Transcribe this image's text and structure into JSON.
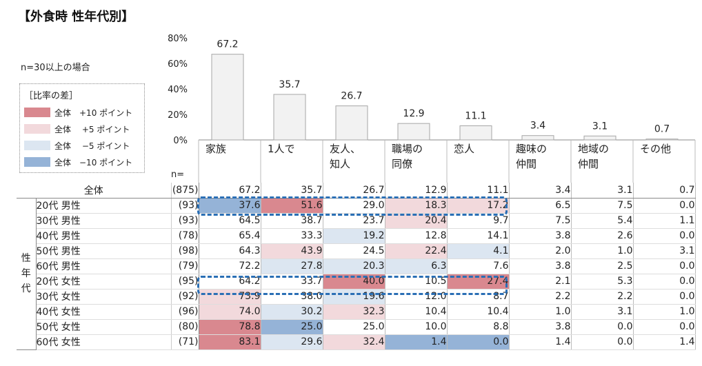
{
  "title": "【外食時 性年代別】",
  "note": "n=30以上の場合",
  "legend": {
    "title": "［比率の差］",
    "items": [
      {
        "label": "全体　+10 ポイント",
        "color": "#d9888f"
      },
      {
        "label": "全体　 +5 ポイント",
        "color": "#f2d9dc"
      },
      {
        "label": "全体　 −5 ポイント",
        "color": "#dce6f1"
      },
      {
        "label": "全体　−10 ポイント",
        "color": "#95b3d7"
      }
    ]
  },
  "n_header": "n=",
  "chart_data": {
    "type": "bar",
    "categories": [
      "家族",
      "1人で",
      "友人、\n知人",
      "職場の\n同僚",
      "恋人",
      "趣味の\n仲間",
      "地域の\n仲間",
      "その他"
    ],
    "values": [
      67.2,
      35.7,
      26.7,
      12.9,
      11.1,
      3.4,
      3.1,
      0.7
    ],
    "ylim": [
      0,
      80
    ],
    "yticks": [
      "0%",
      "20%",
      "40%",
      "60%",
      "80%"
    ],
    "bar_color": "#f2f2f2",
    "bar_edge": "#a6a6a6"
  },
  "table": {
    "total_label": "全体",
    "total_n": "(875)",
    "total_values": [
      "67.2",
      "35.7",
      "26.7",
      "12.9",
      "11.1",
      "3.4",
      "3.1",
      "0.7"
    ],
    "group_label": "性\n年\n代",
    "rows": [
      {
        "label": "20代 男性",
        "n": "(93)",
        "values": [
          "37.6",
          "51.6",
          "29.0",
          "18.3",
          "17.2",
          "6.5",
          "7.5",
          "0.0"
        ],
        "colors": [
          "#95b3d7",
          "#d9888f",
          "",
          "#f2d9dc",
          "#f2d9dc",
          "",
          "",
          ""
        ]
      },
      {
        "label": "30代 男性",
        "n": "(93)",
        "values": [
          "64.5",
          "38.7",
          "23.7",
          "20.4",
          "9.7",
          "7.5",
          "5.4",
          "1.1"
        ],
        "colors": [
          "",
          "",
          "",
          "#f2d9dc",
          "",
          "",
          "",
          ""
        ]
      },
      {
        "label": "40代 男性",
        "n": "(78)",
        "values": [
          "65.4",
          "33.3",
          "19.2",
          "12.8",
          "14.1",
          "3.8",
          "2.6",
          "0.0"
        ],
        "colors": [
          "",
          "",
          "#dce6f1",
          "",
          "",
          "",
          "",
          ""
        ]
      },
      {
        "label": "50代 男性",
        "n": "(98)",
        "values": [
          "64.3",
          "43.9",
          "24.5",
          "22.4",
          "4.1",
          "2.0",
          "1.0",
          "3.1"
        ],
        "colors": [
          "",
          "#f2d9dc",
          "",
          "#f2d9dc",
          "#dce6f1",
          "",
          "",
          ""
        ]
      },
      {
        "label": "60代 男性",
        "n": "(79)",
        "values": [
          "72.2",
          "27.8",
          "20.3",
          "6.3",
          "7.6",
          "3.8",
          "2.5",
          "0.0"
        ],
        "colors": [
          "",
          "#dce6f1",
          "#dce6f1",
          "#dce6f1",
          "",
          "",
          "",
          ""
        ]
      },
      {
        "label": "20代 女性",
        "n": "(95)",
        "values": [
          "64.2",
          "33.7",
          "40.0",
          "10.5",
          "27.4",
          "2.1",
          "5.3",
          "0.0"
        ],
        "colors": [
          "",
          "",
          "#d9888f",
          "",
          "#d9888f",
          "",
          "",
          ""
        ]
      },
      {
        "label": "30代 女性",
        "n": "(92)",
        "values": [
          "73.9",
          "38.0",
          "19.6",
          "12.0",
          "8.7",
          "2.2",
          "2.2",
          "0.0"
        ],
        "colors": [
          "#f2d9dc",
          "",
          "#dce6f1",
          "",
          "",
          "",
          "",
          ""
        ]
      },
      {
        "label": "40代 女性",
        "n": "(96)",
        "values": [
          "74.0",
          "30.2",
          "32.3",
          "10.4",
          "10.4",
          "1.0",
          "3.1",
          "1.0"
        ],
        "colors": [
          "#f2d9dc",
          "#dce6f1",
          "#f2d9dc",
          "",
          "",
          "",
          "",
          ""
        ]
      },
      {
        "label": "50代 女性",
        "n": "(80)",
        "values": [
          "78.8",
          "25.0",
          "25.0",
          "10.0",
          "8.8",
          "3.8",
          "0.0",
          "0.0"
        ],
        "colors": [
          "#d9888f",
          "#95b3d7",
          "",
          "",
          "",
          "",
          "",
          ""
        ]
      },
      {
        "label": "60代 女性",
        "n": "(71)",
        "values": [
          "83.1",
          "29.6",
          "32.4",
          "1.4",
          "0.0",
          "1.4",
          "0.0",
          "1.4"
        ],
        "colors": [
          "#d9888f",
          "#dce6f1",
          "#f2d9dc",
          "#95b3d7",
          "#95b3d7",
          "",
          "",
          ""
        ]
      }
    ]
  }
}
